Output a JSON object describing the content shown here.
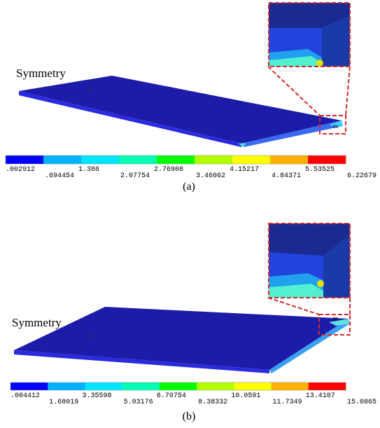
{
  "panels": [
    {
      "symmetry_label": "Symmetry",
      "max_marker": "MX",
      "min_marker": "MN",
      "legend": {
        "values": [
          ".002912",
          ".694454",
          "1.386",
          "2.07754",
          "2.76908",
          "3.46062",
          "4.15217",
          "4.84371",
          "5.53525",
          "6.22679"
        ],
        "colors": [
          "#0000ff",
          "#00b2ff",
          "#00e5ff",
          "#00ffb2",
          "#00ff00",
          "#b2ff00",
          "#ffff00",
          "#ffb200",
          "#ff0000"
        ]
      },
      "caption": "(a)"
    },
    {
      "symmetry_label": "Symmetry",
      "max_marker": "MX",
      "min_marker": "MN",
      "legend": {
        "values": [
          ".004412",
          "1.68019",
          "3.35598",
          "5.03176",
          "6.70754",
          "8.38332",
          "10.0591",
          "11.7349",
          "13.4107",
          "15.0865"
        ],
        "colors": [
          "#0000ff",
          "#00b2ff",
          "#00e5ff",
          "#00ffb2",
          "#00ff00",
          "#b2ff00",
          "#ffff00",
          "#ffb200",
          "#ff0000"
        ]
      },
      "caption": "(b)"
    }
  ]
}
